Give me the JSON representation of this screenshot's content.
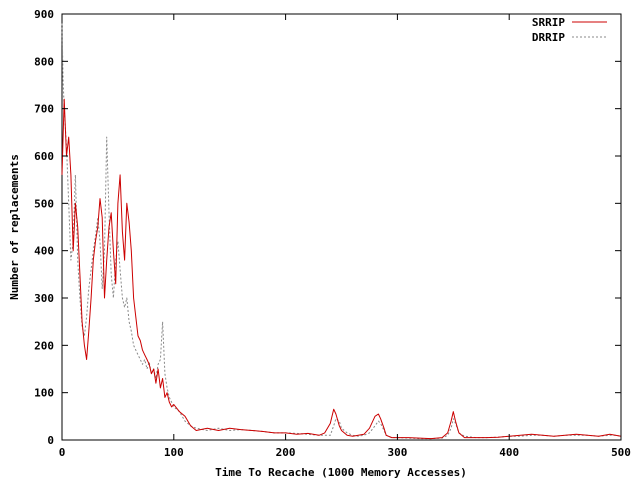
{
  "chart_data": {
    "type": "line",
    "xlabel": "Time To Recache (1000 Memory Accesses)",
    "ylabel": "Number of replacements",
    "xlim": [
      0,
      500
    ],
    "ylim": [
      0,
      900
    ],
    "xticks": [
      0,
      100,
      200,
      300,
      400,
      500
    ],
    "yticks": [
      0,
      100,
      200,
      300,
      400,
      500,
      600,
      700,
      800,
      900
    ],
    "xtick_labels": [
      "0",
      "100",
      "200",
      "300",
      "400",
      "500"
    ],
    "ytick_labels": [
      "0",
      "100",
      "200",
      "300",
      "400",
      "500",
      "600",
      "700",
      "800",
      "900"
    ],
    "grid": false,
    "legend_position": "top-right",
    "series": [
      {
        "name": "SRRIP",
        "color": "#cc0000",
        "style": "solid",
        "x": [
          0,
          2,
          4,
          6,
          8,
          10,
          12,
          14,
          16,
          18,
          20,
          22,
          24,
          26,
          28,
          30,
          32,
          34,
          36,
          38,
          40,
          42,
          44,
          46,
          48,
          50,
          52,
          54,
          56,
          58,
          60,
          62,
          64,
          66,
          68,
          70,
          72,
          74,
          76,
          78,
          80,
          82,
          84,
          86,
          88,
          90,
          92,
          94,
          96,
          98,
          100,
          105,
          110,
          115,
          120,
          130,
          140,
          150,
          160,
          170,
          180,
          190,
          200,
          210,
          220,
          230,
          235,
          240,
          243,
          245,
          248,
          250,
          255,
          260,
          265,
          270,
          275,
          280,
          283,
          285,
          288,
          290,
          295,
          300,
          310,
          320,
          330,
          340,
          345,
          348,
          350,
          352,
          355,
          360,
          370,
          380,
          390,
          400,
          410,
          420,
          430,
          440,
          450,
          460,
          470,
          480,
          490,
          495,
          500
        ],
        "values": [
          560,
          720,
          600,
          640,
          560,
          400,
          500,
          450,
          350,
          250,
          200,
          170,
          230,
          300,
          380,
          420,
          450,
          510,
          470,
          300,
          380,
          450,
          480,
          400,
          330,
          500,
          560,
          440,
          380,
          500,
          460,
          400,
          300,
          260,
          220,
          210,
          190,
          180,
          170,
          160,
          140,
          150,
          120,
          150,
          110,
          130,
          90,
          100,
          80,
          70,
          75,
          60,
          50,
          30,
          20,
          25,
          20,
          25,
          22,
          20,
          18,
          15,
          15,
          12,
          14,
          10,
          15,
          35,
          65,
          55,
          30,
          20,
          10,
          8,
          10,
          12,
          25,
          50,
          55,
          45,
          25,
          10,
          5,
          5,
          5,
          4,
          3,
          5,
          15,
          40,
          60,
          40,
          15,
          5,
          5,
          5,
          6,
          8,
          10,
          12,
          10,
          8,
          10,
          12,
          10,
          8,
          12,
          10,
          8
        ]
      },
      {
        "name": "DRRIP",
        "color": "#888888",
        "style": "dotted",
        "x": [
          0,
          1,
          2,
          4,
          6,
          8,
          10,
          12,
          14,
          16,
          18,
          20,
          22,
          24,
          26,
          28,
          30,
          32,
          34,
          36,
          38,
          40,
          42,
          44,
          46,
          48,
          50,
          52,
          54,
          56,
          58,
          60,
          62,
          64,
          66,
          68,
          70,
          72,
          74,
          76,
          78,
          80,
          82,
          84,
          86,
          88,
          90,
          92,
          94,
          96,
          98,
          100,
          105,
          110,
          115,
          120,
          130,
          140,
          150,
          160,
          170,
          180,
          190,
          200,
          210,
          220,
          230,
          240,
          243,
          245,
          248,
          250,
          255,
          260,
          265,
          270,
          275,
          280,
          283,
          285,
          288,
          290,
          295,
          300,
          310,
          320,
          330,
          340,
          345,
          348,
          350,
          352,
          355,
          360,
          370,
          380,
          390,
          400,
          410,
          420,
          430,
          440,
          450,
          460,
          470,
          480,
          490,
          495,
          500
        ],
        "values": [
          880,
          760,
          700,
          620,
          500,
          380,
          420,
          560,
          380,
          300,
          240,
          220,
          260,
          320,
          360,
          400,
          430,
          470,
          420,
          320,
          400,
          640,
          480,
          350,
          300,
          380,
          420,
          360,
          300,
          280,
          300,
          250,
          230,
          200,
          190,
          180,
          170,
          160,
          170,
          150,
          165,
          140,
          150,
          130,
          160,
          170,
          250,
          140,
          110,
          90,
          80,
          70,
          60,
          40,
          30,
          25,
          20,
          25,
          20,
          22,
          20,
          18,
          15,
          15,
          14,
          12,
          10,
          10,
          30,
          45,
          40,
          25,
          15,
          10,
          8,
          10,
          15,
          30,
          40,
          35,
          20,
          10,
          5,
          5,
          4,
          3,
          3,
          4,
          10,
          25,
          45,
          35,
          15,
          8,
          5,
          5,
          6,
          8,
          8,
          10,
          10,
          8,
          10,
          10,
          10,
          8,
          10,
          10,
          8
        ]
      }
    ]
  }
}
